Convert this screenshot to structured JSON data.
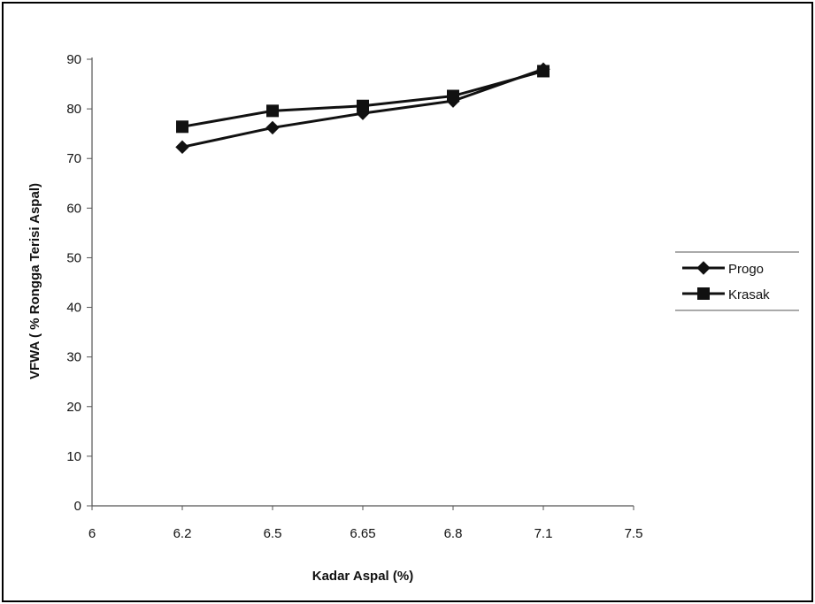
{
  "chart_data": {
    "type": "line",
    "categories": [
      "6",
      "6.2",
      "6.5",
      "6.65",
      "6.8",
      "7.1",
      "7.5"
    ],
    "series": [
      {
        "name": "Progo",
        "marker": "diamond",
        "values": [
          null,
          72.3,
          76.2,
          79.1,
          81.6,
          88.0,
          null
        ]
      },
      {
        "name": "Krasak",
        "marker": "square",
        "values": [
          null,
          76.4,
          79.6,
          80.6,
          82.6,
          87.6,
          null
        ]
      }
    ],
    "yticks": [
      0,
      10,
      20,
      30,
      40,
      50,
      60,
      70,
      80,
      90
    ],
    "ylim": [
      0,
      90
    ],
    "xlabel": "Kadar Aspal (%)",
    "ylabel": "VFWA ( % Rongga Terisi Aspal)",
    "title": "",
    "legend_position": "right",
    "grid": false,
    "line_color": "#111111"
  }
}
